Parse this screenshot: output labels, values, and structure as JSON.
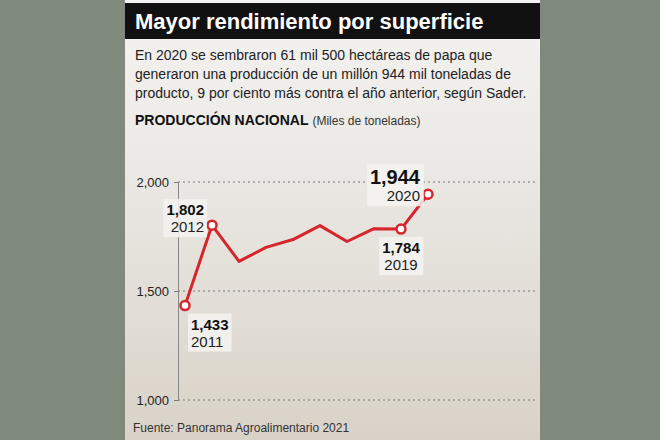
{
  "chart_data": {
    "type": "line",
    "title": "Mayor rendimiento por superficie",
    "subtitle": "En 2020 se sembraron 61 mil 500 hectáreas de papa que generaron una producción de un millón 944 mil toneladas de producto, 9 por ciento más contra el año anterior, según Sader.",
    "y_label": "PRODUCCIÓN NACIONAL",
    "y_label_unit": "(Miles de toneladas)",
    "source": "Fuente: Panorama Agroalimentario 2021",
    "categories": [
      "2011",
      "2012",
      null,
      null,
      null,
      null,
      null,
      null,
      "2019",
      "2020"
    ],
    "values": [
      1433,
      1802,
      1636,
      1700,
      1736,
      1800,
      1727,
      1786,
      1784,
      1944
    ],
    "value_labels": [
      "1,433",
      "1,802",
      null,
      null,
      null,
      null,
      null,
      null,
      "1,784",
      "1,944"
    ],
    "color": "#d7262b",
    "marker": "circle",
    "data_labels": true,
    "tick_labels": "y",
    "grid": true,
    "ylim": [
      1000,
      2000
    ],
    "yticks": [
      {
        "value": 1000,
        "label": "1,000"
      },
      {
        "value": 1500,
        "label": "1,500"
      },
      {
        "value": 2000,
        "label": "2,000"
      }
    ]
  }
}
